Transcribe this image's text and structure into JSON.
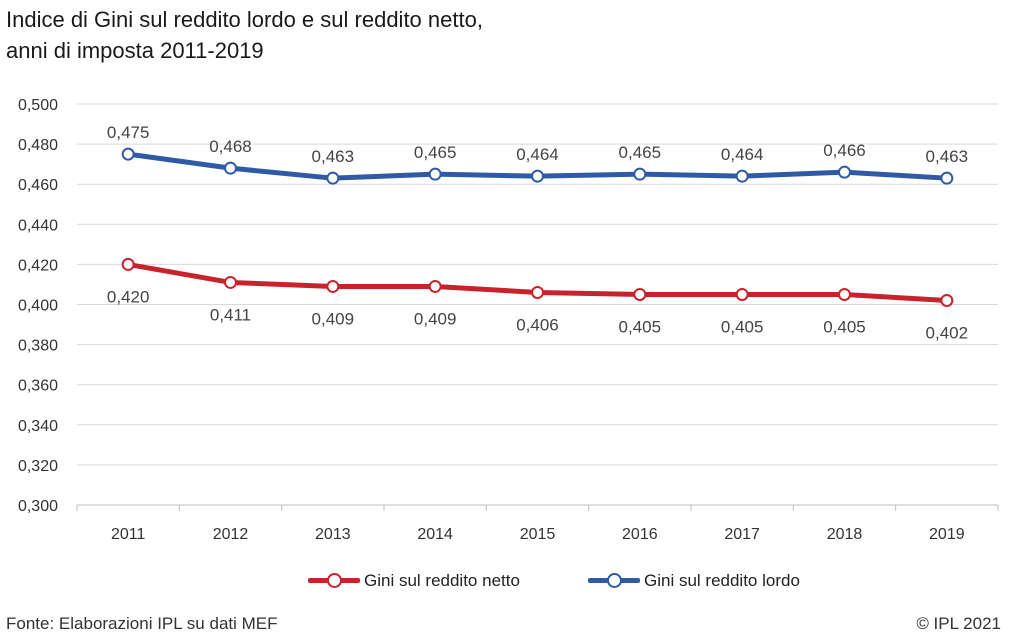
{
  "title": {
    "line1": "Indice di Gini sul reddito lordo e sul reddito netto,",
    "line2": "anni di imposta 2011-2019"
  },
  "footer": {
    "source": "Fonte: Elaborazioni IPL su dati MEF",
    "copyright": "© IPL 2021"
  },
  "chart_data": {
    "type": "line",
    "categories": [
      "2011",
      "2012",
      "2013",
      "2014",
      "2015",
      "2016",
      "2017",
      "2018",
      "2019"
    ],
    "ylim": [
      0.3,
      0.5
    ],
    "yticks": [
      "0,500",
      "0,480",
      "0,460",
      "0,440",
      "0,420",
      "0,400",
      "0,380",
      "0,360",
      "0,340",
      "0,320",
      "0,300"
    ],
    "grid": true,
    "legend_position": "bottom",
    "series": [
      {
        "name": "Gini sul reddito netto",
        "color": "#c8232c",
        "values": [
          0.42,
          0.411,
          0.409,
          0.409,
          0.406,
          0.405,
          0.405,
          0.405,
          0.402
        ],
        "labels": [
          "0,420",
          "0,411",
          "0,409",
          "0,409",
          "0,406",
          "0,405",
          "0,405",
          "0,405",
          "0,402"
        ],
        "label_position": "below"
      },
      {
        "name": "Gini sul reddito lordo",
        "color": "#2f5aa5",
        "values": [
          0.475,
          0.468,
          0.463,
          0.465,
          0.464,
          0.465,
          0.464,
          0.466,
          0.463
        ],
        "labels": [
          "0,475",
          "0,468",
          "0,463",
          "0,465",
          "0,464",
          "0,465",
          "0,464",
          "0,466",
          "0,463"
        ],
        "label_position": "above"
      }
    ]
  }
}
